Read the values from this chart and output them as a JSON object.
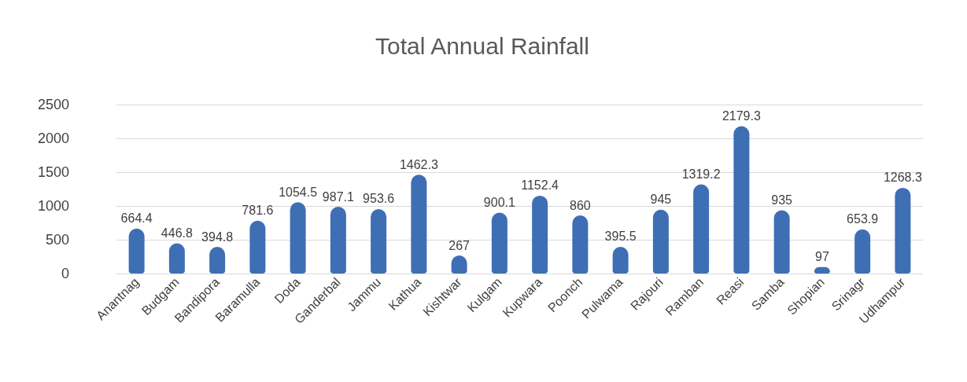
{
  "chart_data": {
    "type": "bar",
    "title": "Total Annual Rainfall",
    "categories": [
      "Anantnag",
      "Budgam",
      "Bandipora",
      "Baramulla",
      "Doda",
      "Ganderbal",
      "Jammu",
      "Kathua",
      "Kishtwar",
      "Kulgam",
      "Kupwara",
      "Poonch",
      "Pulwama",
      "Rajouri",
      "Ramban",
      "Reasi",
      "Samba",
      "Shopian",
      "Srinagr",
      "Udhampur"
    ],
    "values": [
      664.4,
      446.8,
      394.8,
      781.6,
      1054.5,
      987.1,
      953.6,
      1462.3,
      267,
      900.1,
      1152.4,
      860,
      395.5,
      945,
      1319.2,
      2179.3,
      935,
      97,
      653.9,
      1268.3
    ],
    "color": "#3e6fb5",
    "ylim": [
      0,
      2500
    ],
    "yticks": [
      0,
      500,
      1000,
      1500,
      2000,
      2500
    ],
    "grid": "y",
    "data_labels": true
  }
}
